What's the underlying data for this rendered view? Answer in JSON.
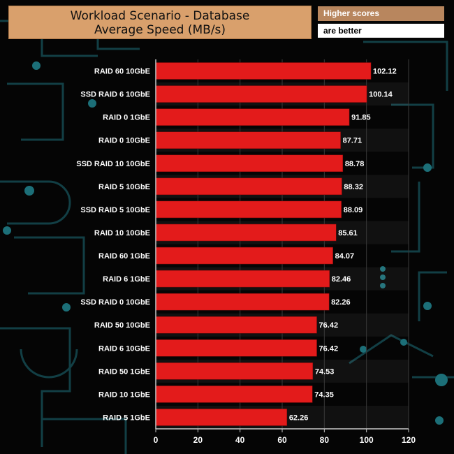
{
  "header": {
    "title_line1": "Workload Scenario - Database",
    "title_line2": "Average Speed (MB/s)",
    "note_line1": "Higher scores",
    "note_line2": "are better"
  },
  "colors": {
    "bar": "#e31b1b",
    "grid": "#3a3a3a",
    "axis": "#c8c8c8",
    "title_bg": "#d9a06c",
    "circuit": "#1a6a72"
  },
  "chart_data": {
    "type": "bar",
    "orientation": "horizontal",
    "title": "Workload Scenario - Database Average Speed (MB/s)",
    "categories": [
      "RAID 60 10GbE",
      "SSD RAID 6 10GbE",
      "RAID 0 1GbE",
      "RAID 0 10GbE",
      "SSD RAID 10 10GbE",
      "RAID 5 10GbE",
      "SSD RAID 5 10GbE",
      "RAID 10 10GbE",
      "RAID 60 1GbE",
      "RAID 6 1GbE",
      "SSD RAID 0 10GbE",
      "RAID 50 10GbE",
      "RAID 6 10GbE",
      "RAID 50 1GbE",
      "RAID 10 1GbE",
      "RAID 5 1GbE"
    ],
    "values": [
      102.12,
      100.14,
      91.85,
      87.71,
      88.78,
      88.32,
      88.09,
      85.61,
      84.07,
      82.46,
      82.26,
      76.42,
      76.42,
      74.53,
      74.35,
      62.26
    ],
    "value_labels": [
      "102.12",
      "100.14",
      "91.85",
      "87.71",
      "88.78",
      "88.32",
      "88.09",
      "85.61",
      "84.07",
      "82.46",
      "82.26",
      "76.42",
      "76.42",
      "74.53",
      "74.35",
      "62.26"
    ],
    "xlim": [
      0,
      120
    ],
    "xticks": [
      "0",
      "20",
      "40",
      "60",
      "80",
      "100",
      "120"
    ],
    "grid": true,
    "legend": false
  }
}
